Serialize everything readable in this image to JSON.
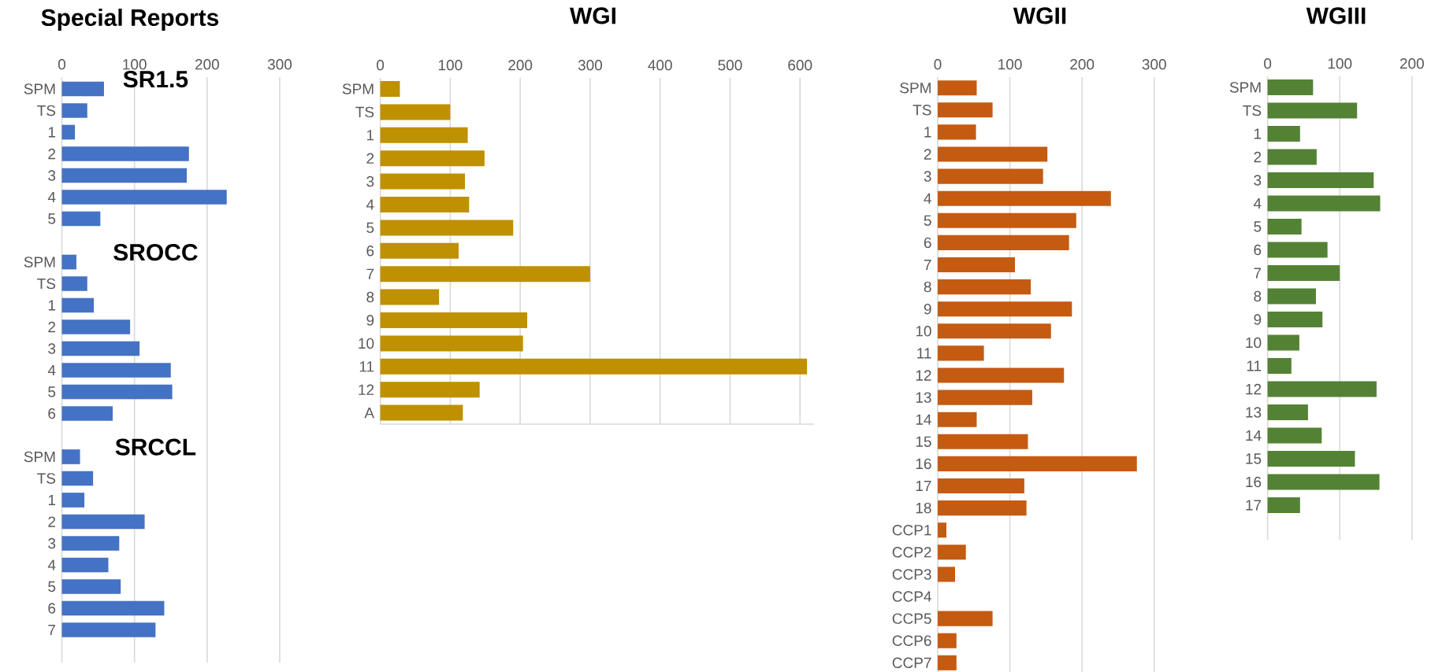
{
  "chart_data": [
    {
      "type": "bar",
      "orientation": "horizontal",
      "title": "Special Reports",
      "color": "#4472c4",
      "grid": "x",
      "xlim": [
        0,
        300
      ],
      "xticks": [
        0,
        100,
        200,
        300
      ],
      "categories": [
        "SPM",
        "TS",
        "1",
        "2",
        "3",
        "4",
        "5",
        null,
        "SPM",
        "TS",
        "1",
        "2",
        "3",
        "4",
        "5",
        "6",
        null,
        "SPM",
        "TS",
        "1",
        "2",
        "3",
        "4",
        "5",
        "6",
        "7"
      ],
      "values": [
        58,
        35,
        18,
        175,
        172,
        227,
        53,
        null,
        20,
        35,
        44,
        94,
        107,
        150,
        152,
        70,
        null,
        25,
        43,
        31,
        114,
        79,
        64,
        81,
        141,
        129
      ],
      "annotations": [
        "SR1.5",
        "SROCC",
        "SRCCL"
      ]
    },
    {
      "type": "bar",
      "orientation": "horizontal",
      "title": "WGI",
      "color": "#bf9000",
      "grid": "x",
      "xlim": [
        0,
        620
      ],
      "xticks": [
        0,
        100,
        200,
        300,
        400,
        500,
        600
      ],
      "categories": [
        "SPM",
        "TS",
        "1",
        "2",
        "3",
        "4",
        "5",
        "6",
        "7",
        "8",
        "9",
        "10",
        "11",
        "12",
        "A"
      ],
      "values": [
        28,
        100,
        125,
        149,
        121,
        127,
        190,
        112,
        300,
        84,
        210,
        204,
        610,
        142,
        118
      ]
    },
    {
      "type": "bar",
      "orientation": "horizontal",
      "title": "WGII",
      "color": "#c55a11",
      "grid": "x",
      "xlim": [
        0,
        300
      ],
      "xticks": [
        0,
        100,
        200,
        300
      ],
      "categories": [
        "SPM",
        "TS",
        "1",
        "2",
        "3",
        "4",
        "5",
        "6",
        "7",
        "8",
        "9",
        "10",
        "11",
        "12",
        "13",
        "14",
        "15",
        "16",
        "17",
        "18",
        "CCP1",
        "CCP2",
        "CCP3",
        "CCP4",
        "CCP5",
        "CCP6",
        "CCP7"
      ],
      "values": [
        54,
        76,
        53,
        152,
        146,
        240,
        192,
        182,
        107,
        129,
        186,
        157,
        64,
        175,
        131,
        54,
        125,
        276,
        120,
        123,
        12,
        39,
        24,
        null,
        76,
        26,
        26
      ]
    },
    {
      "type": "bar",
      "orientation": "horizontal",
      "title": "WGIII",
      "color": "#548235",
      "grid": "x",
      "xlim": [
        0,
        200
      ],
      "xticks": [
        0,
        100,
        200
      ],
      "categories": [
        "SPM",
        "TS",
        "1",
        "2",
        "3",
        "4",
        "5",
        "6",
        "7",
        "8",
        "9",
        "10",
        "11",
        "12",
        "13",
        "14",
        "15",
        "16",
        "17"
      ],
      "values": [
        63,
        124,
        45,
        68,
        147,
        156,
        47,
        83,
        100,
        67,
        76,
        44,
        33,
        151,
        56,
        75,
        121,
        155,
        45
      ]
    }
  ]
}
